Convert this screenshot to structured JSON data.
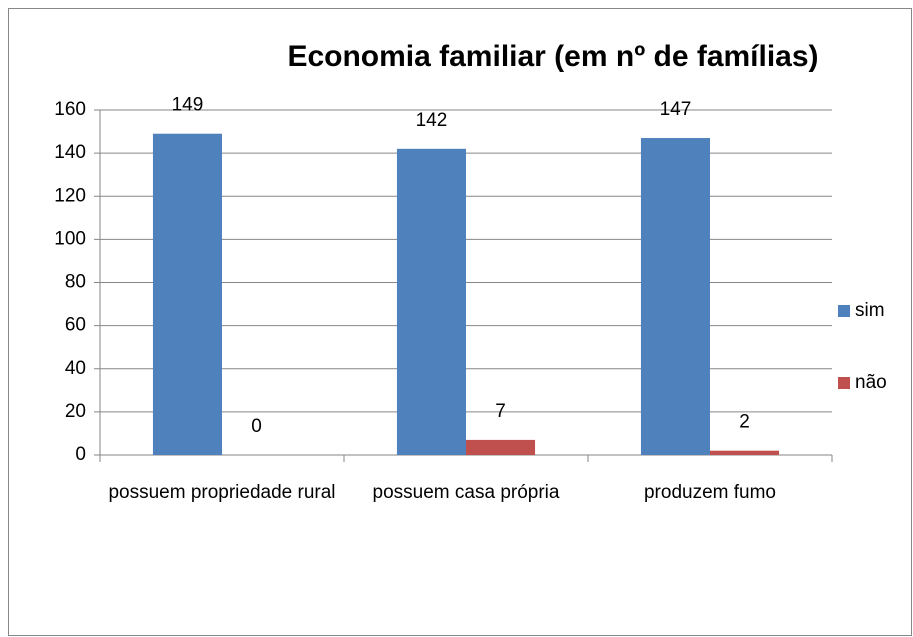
{
  "chart_data": {
    "type": "bar",
    "title": "Economia familiar (em nº de famílias)",
    "categories": [
      "possuem propriedade rural",
      "possuem casa própria",
      "produzem fumo"
    ],
    "series": [
      {
        "name": "sim",
        "color": "#4f81bd",
        "values": [
          149,
          142,
          147
        ]
      },
      {
        "name": "não",
        "color": "#c0504d",
        "values": [
          0,
          7,
          2
        ]
      }
    ],
    "ylim": [
      0,
      160
    ],
    "yticks": [
      0,
      20,
      40,
      60,
      80,
      100,
      120,
      140,
      160
    ],
    "grid": true,
    "legend": "right"
  }
}
